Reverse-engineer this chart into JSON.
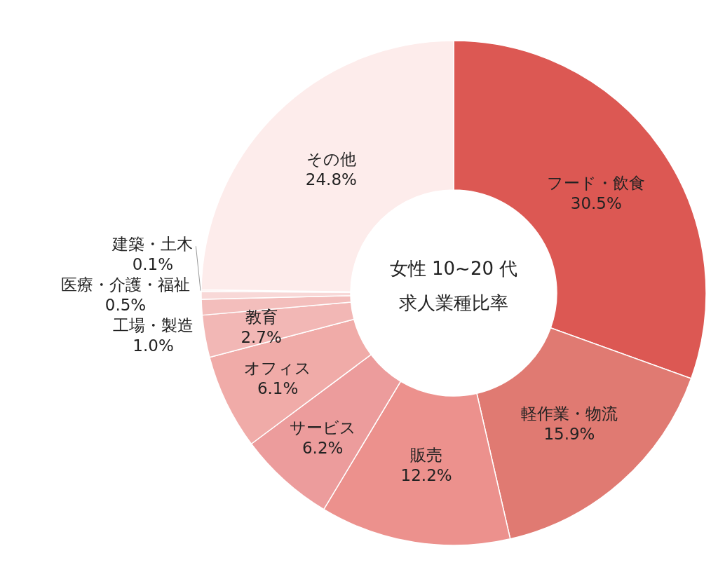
{
  "chart_data": {
    "type": "donut",
    "title": "女性 10~20 代",
    "subtitle": "求人業種比率",
    "categories": [
      "フード・飲食",
      "軽作業・物流",
      "販売",
      "サービス",
      "オフィス",
      "教育",
      "工場・製造",
      "医療・介護・福祉",
      "建築・土木",
      "その他"
    ],
    "values": [
      30.5,
      15.9,
      12.2,
      6.2,
      6.1,
      2.7,
      1.0,
      0.5,
      0.1,
      24.8
    ],
    "value_labels": [
      "30.5%",
      "15.9%",
      "12.2%",
      "6.2%",
      "6.1%",
      "2.7%",
      "1.0%",
      "0.5%",
      "0.1%",
      "24.8%"
    ],
    "colors": [
      "#dc5853",
      "#e07a72",
      "#ec918d",
      "#ec9c9c",
      "#f0aba8",
      "#f2b7b5",
      "#f3bebc",
      "#f8d8d7",
      "#fae0df",
      "#fdeceb"
    ]
  }
}
